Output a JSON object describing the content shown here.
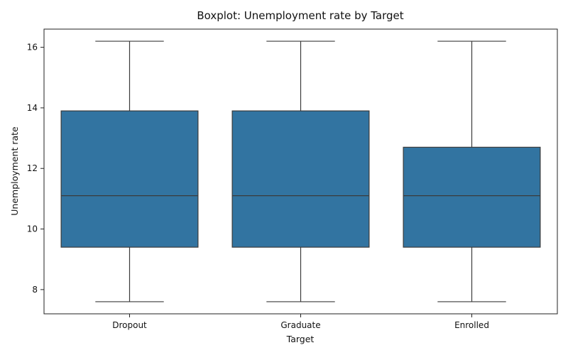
{
  "chart_data": {
    "type": "boxplot",
    "title": "Boxplot: Unemployment rate by Target",
    "xlabel": "Target",
    "ylabel": "Unemployment rate",
    "ylim": [
      7.2,
      16.6
    ],
    "yticks": [
      8,
      10,
      12,
      14,
      16
    ],
    "grid": false,
    "legend": "none",
    "color": "#3274a1",
    "categories": [
      "Dropout",
      "Graduate",
      "Enrolled"
    ],
    "boxes": [
      {
        "category": "Dropout",
        "min": 7.6,
        "q1": 9.4,
        "median": 11.1,
        "q3": 13.9,
        "max": 16.2
      },
      {
        "category": "Graduate",
        "min": 7.6,
        "q1": 9.4,
        "median": 11.1,
        "q3": 13.9,
        "max": 16.2
      },
      {
        "category": "Enrolled",
        "min": 7.6,
        "q1": 9.4,
        "median": 11.1,
        "q3": 12.7,
        "max": 16.2
      }
    ]
  }
}
